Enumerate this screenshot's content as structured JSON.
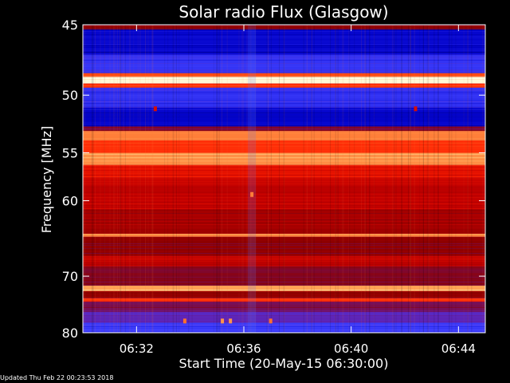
{
  "chart_data": {
    "type": "heatmap",
    "title": "Solar radio Flux (Glasgow)",
    "xlabel": "Start Time (20-May-15 06:30:00)",
    "ylabel": "Frequency [MHz]",
    "xlim_minutes": [
      0,
      15
    ],
    "ylim_mhz": [
      45,
      80
    ],
    "x_ticks": [
      {
        "label": "06:32",
        "minutes": 2
      },
      {
        "label": "06:36",
        "minutes": 6
      },
      {
        "label": "06:40",
        "minutes": 10
      },
      {
        "label": "06:44",
        "minutes": 14
      }
    ],
    "y_ticks": [
      {
        "label": "45",
        "mhz": 45
      },
      {
        "label": "50",
        "mhz": 50
      },
      {
        "label": "55",
        "mhz": 55
      },
      {
        "label": "60",
        "mhz": 60
      },
      {
        "label": "70",
        "mhz": 70
      },
      {
        "label": "80",
        "mhz": 80
      }
    ],
    "colormap": [
      "#000040",
      "#0000c8",
      "#4040ff",
      "#6a1a9a",
      "#8a0000",
      "#c00000",
      "#ff2000",
      "#ff6020",
      "#ffb060",
      "#ffffe0"
    ],
    "bands": [
      {
        "from_mhz": 45.0,
        "to_mhz": 45.3,
        "level": 0.45
      },
      {
        "from_mhz": 45.3,
        "to_mhz": 47.0,
        "level": 0.12
      },
      {
        "from_mhz": 47.0,
        "to_mhz": 48.3,
        "level": 0.2
      },
      {
        "from_mhz": 48.3,
        "to_mhz": 48.6,
        "level": 0.75
      },
      {
        "from_mhz": 48.6,
        "to_mhz": 49.1,
        "level": 1.0
      },
      {
        "from_mhz": 49.1,
        "to_mhz": 49.4,
        "level": 0.7
      },
      {
        "from_mhz": 49.4,
        "to_mhz": 51.0,
        "level": 0.2
      },
      {
        "from_mhz": 51.0,
        "to_mhz": 52.6,
        "level": 0.12
      },
      {
        "from_mhz": 52.6,
        "to_mhz": 53.0,
        "level": 0.4
      },
      {
        "from_mhz": 53.0,
        "to_mhz": 53.8,
        "level": 0.82
      },
      {
        "from_mhz": 53.8,
        "to_mhz": 55.0,
        "level": 0.7
      },
      {
        "from_mhz": 55.0,
        "to_mhz": 56.2,
        "level": 0.86
      },
      {
        "from_mhz": 56.2,
        "to_mhz": 57.5,
        "level": 0.62
      },
      {
        "from_mhz": 57.5,
        "to_mhz": 61.0,
        "level": 0.56
      },
      {
        "from_mhz": 61.0,
        "to_mhz": 64.0,
        "level": 0.5
      },
      {
        "from_mhz": 64.0,
        "to_mhz": 64.4,
        "level": 0.85
      },
      {
        "from_mhz": 64.4,
        "to_mhz": 67.0,
        "level": 0.45
      },
      {
        "from_mhz": 67.0,
        "to_mhz": 68.5,
        "level": 0.55
      },
      {
        "from_mhz": 68.5,
        "to_mhz": 71.5,
        "level": 0.42
      },
      {
        "from_mhz": 71.5,
        "to_mhz": 72.4,
        "level": 0.88
      },
      {
        "from_mhz": 72.4,
        "to_mhz": 73.5,
        "level": 0.45
      },
      {
        "from_mhz": 73.5,
        "to_mhz": 74.2,
        "level": 0.7
      },
      {
        "from_mhz": 74.2,
        "to_mhz": 76.0,
        "level": 0.38
      },
      {
        "from_mhz": 76.0,
        "to_mhz": 78.0,
        "level": 0.3
      },
      {
        "from_mhz": 78.0,
        "to_mhz": 80.0,
        "level": 0.22
      }
    ],
    "bursts": [
      {
        "minutes": 6.3,
        "mhz": 59.3,
        "level": 0.82
      },
      {
        "minutes": 2.7,
        "mhz": 51.1,
        "level": 0.6
      },
      {
        "minutes": 12.4,
        "mhz": 51.1,
        "level": 0.6
      },
      {
        "minutes": 3.8,
        "mhz": 77.7,
        "level": 0.8
      },
      {
        "minutes": 5.2,
        "mhz": 77.7,
        "level": 0.85
      },
      {
        "minutes": 5.5,
        "mhz": 77.7,
        "level": 0.85
      },
      {
        "minutes": 7.0,
        "mhz": 77.7,
        "level": 0.8
      }
    ],
    "grid": false
  },
  "footer": {
    "updated_text": "Updated Thu Feb 22 00:23:53 2018"
  }
}
